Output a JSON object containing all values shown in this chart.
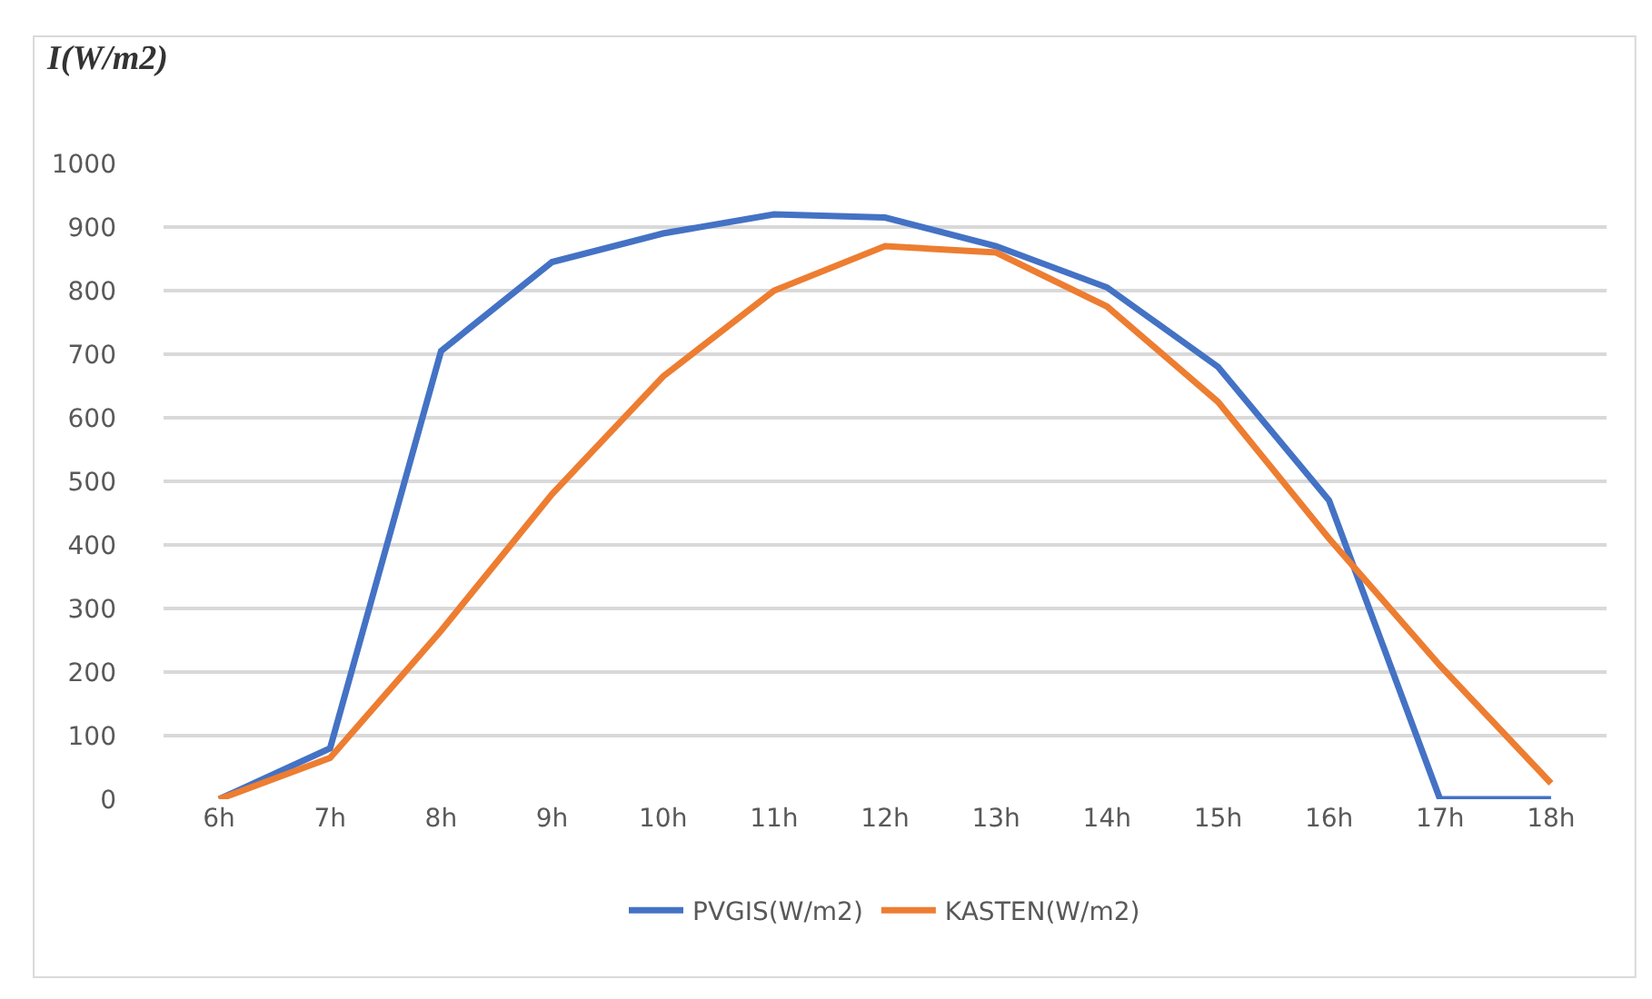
{
  "chart_data": {
    "type": "line",
    "ylabel": "I(W/m2)",
    "categories": [
      "6h",
      "7h",
      "8h",
      "9h",
      "10h",
      "11h",
      "12h",
      "13h",
      "14h",
      "15h",
      "16h",
      "17h",
      "18h"
    ],
    "series": [
      {
        "name": "PVGIS(W/m2)",
        "color": "#4472c4",
        "values": [
          0,
          80,
          705,
          845,
          890,
          920,
          915,
          870,
          805,
          680,
          470,
          0,
          0
        ]
      },
      {
        "name": "KASTEN(W/m2)",
        "color": "#ed7d31",
        "values": [
          0,
          65,
          265,
          480,
          665,
          800,
          870,
          860,
          775,
          625,
          410,
          210,
          25
        ]
      }
    ],
    "ylim": [
      0,
      1000
    ],
    "yticks": [
      0,
      100,
      200,
      300,
      400,
      500,
      600,
      700,
      800,
      900,
      1000
    ],
    "grid": "y",
    "legend": "bottom",
    "marker": "none",
    "line_style": "solid"
  }
}
